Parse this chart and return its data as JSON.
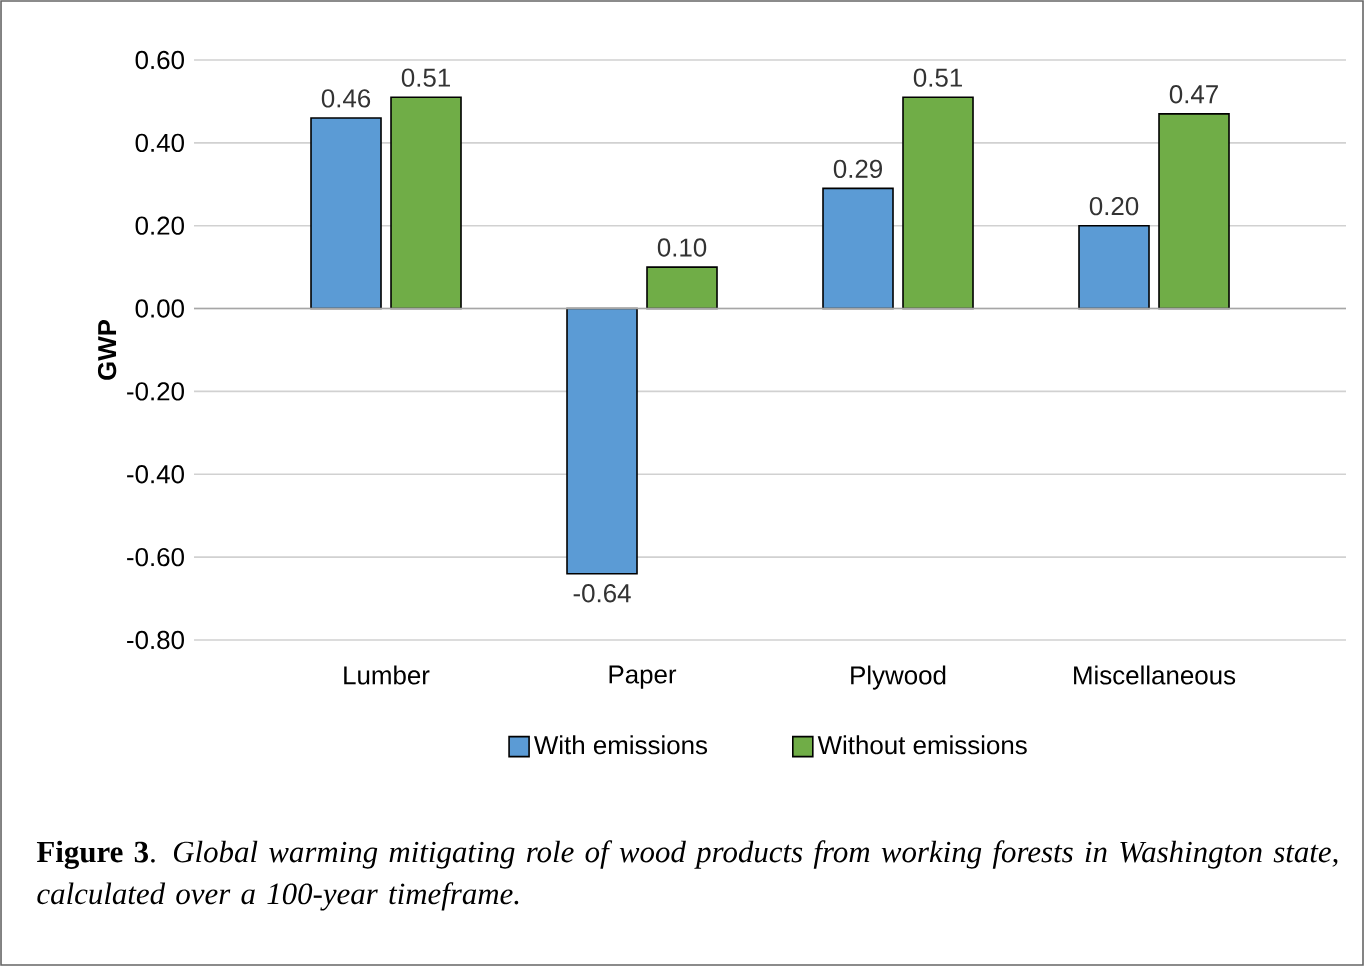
{
  "chart_data": {
    "type": "bar",
    "ylabel": "GWP",
    "categories": [
      "Lumber",
      "Paper",
      "Plywood",
      "Miscellaneous"
    ],
    "series": [
      {
        "name": "With emissions",
        "color": "#5b9bd5",
        "values": [
          0.46,
          -0.64,
          0.29,
          0.2
        ],
        "value_labels": [
          "0.46",
          "-0.64",
          "0.29",
          "0.20"
        ]
      },
      {
        "name": "Without emissions",
        "color": "#70ad47",
        "values": [
          0.51,
          0.1,
          0.51,
          0.47
        ],
        "value_labels": [
          "0.51",
          "0.10",
          "0.51",
          "0.47"
        ]
      }
    ],
    "ylim": [
      -0.8,
      0.6
    ],
    "yticks": [
      {
        "value": -0.8,
        "label": "-0.80"
      },
      {
        "value": -0.6,
        "label": "-0.60"
      },
      {
        "value": -0.4,
        "label": "-0.40"
      },
      {
        "value": -0.2,
        "label": "-0.20"
      },
      {
        "value": 0,
        "label": "0.00"
      },
      {
        "value": 0.2,
        "label": "0.20"
      },
      {
        "value": 0.4,
        "label": "0.40"
      },
      {
        "value": 0.6,
        "label": "0.60"
      }
    ],
    "grid": "y",
    "legend": "bottom",
    "annotations": [
      "**Figure 3**. *Global warming mitigating role of wood products from working forests in Washington state, calculated over a 100-year timeframe.*"
    ]
  }
}
